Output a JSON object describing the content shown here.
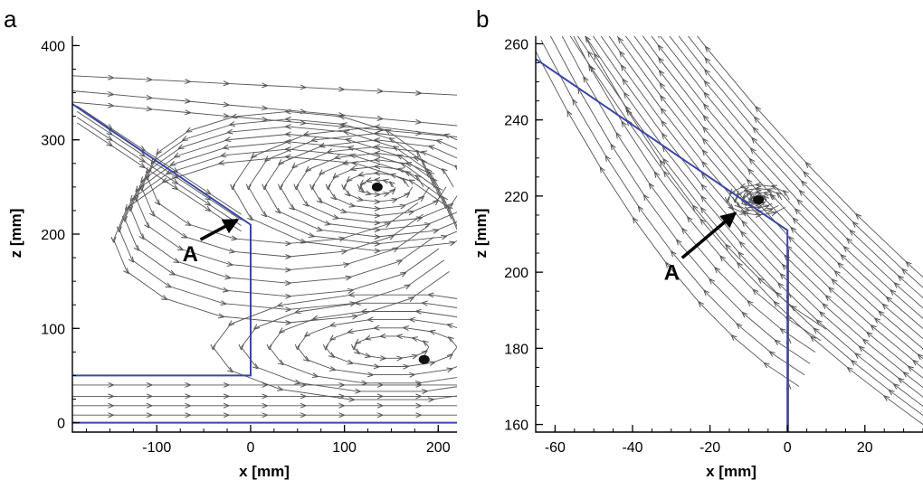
{
  "chart_data": [
    {
      "type": "streamline",
      "panel_label": "a",
      "xlabel": "x [mm]",
      "ylabel": "z [mm]",
      "xlim": [
        -190,
        220
      ],
      "ylim": [
        -10,
        410
      ],
      "xticks": [
        -100,
        0,
        100,
        200
      ],
      "yticks": [
        0,
        100,
        200,
        300,
        400
      ],
      "xtick_labels": [
        "-100",
        "0",
        "100",
        "200"
      ],
      "ytick_labels": [
        "0",
        "100",
        "200",
        "300",
        "400"
      ],
      "wall": [
        [
          -190,
          338
        ],
        [
          0,
          210
        ],
        [
          0,
          50
        ],
        [
          -190,
          50
        ]
      ],
      "floor_z": 0,
      "vortex_centers": [
        [
          135,
          250
        ],
        [
          185,
          67
        ]
      ],
      "annotation": {
        "text": "A",
        "target": [
          -8,
          221
        ],
        "label_at": [
          -65,
          175
        ]
      },
      "colors": {
        "wall": "#3a47a6",
        "streamline": "#555555"
      }
    },
    {
      "type": "streamline",
      "panel_label": "b",
      "xlabel": "x [mm]",
      "ylabel": "z [mm]",
      "xlim": [
        -65,
        35
      ],
      "ylim": [
        158,
        262
      ],
      "xticks": [
        -60,
        -40,
        -20,
        0,
        20
      ],
      "yticks": [
        160,
        180,
        200,
        220,
        240,
        260
      ],
      "xtick_labels": [
        "-60",
        "-40",
        "-20",
        "0",
        "20"
      ],
      "ytick_labels": [
        "160",
        "180",
        "200",
        "220",
        "240",
        "260"
      ],
      "wall": [
        [
          -65,
          256
        ],
        [
          0,
          211
        ],
        [
          0,
          158
        ]
      ],
      "vortex_centers": [
        [
          -7.5,
          219
        ]
      ],
      "annotation": {
        "text": "A",
        "target": [
          -12,
          217
        ],
        "label_at": [
          -30,
          199
        ]
      },
      "colors": {
        "wall": "#3a47a6",
        "streamline": "#555555"
      }
    }
  ]
}
